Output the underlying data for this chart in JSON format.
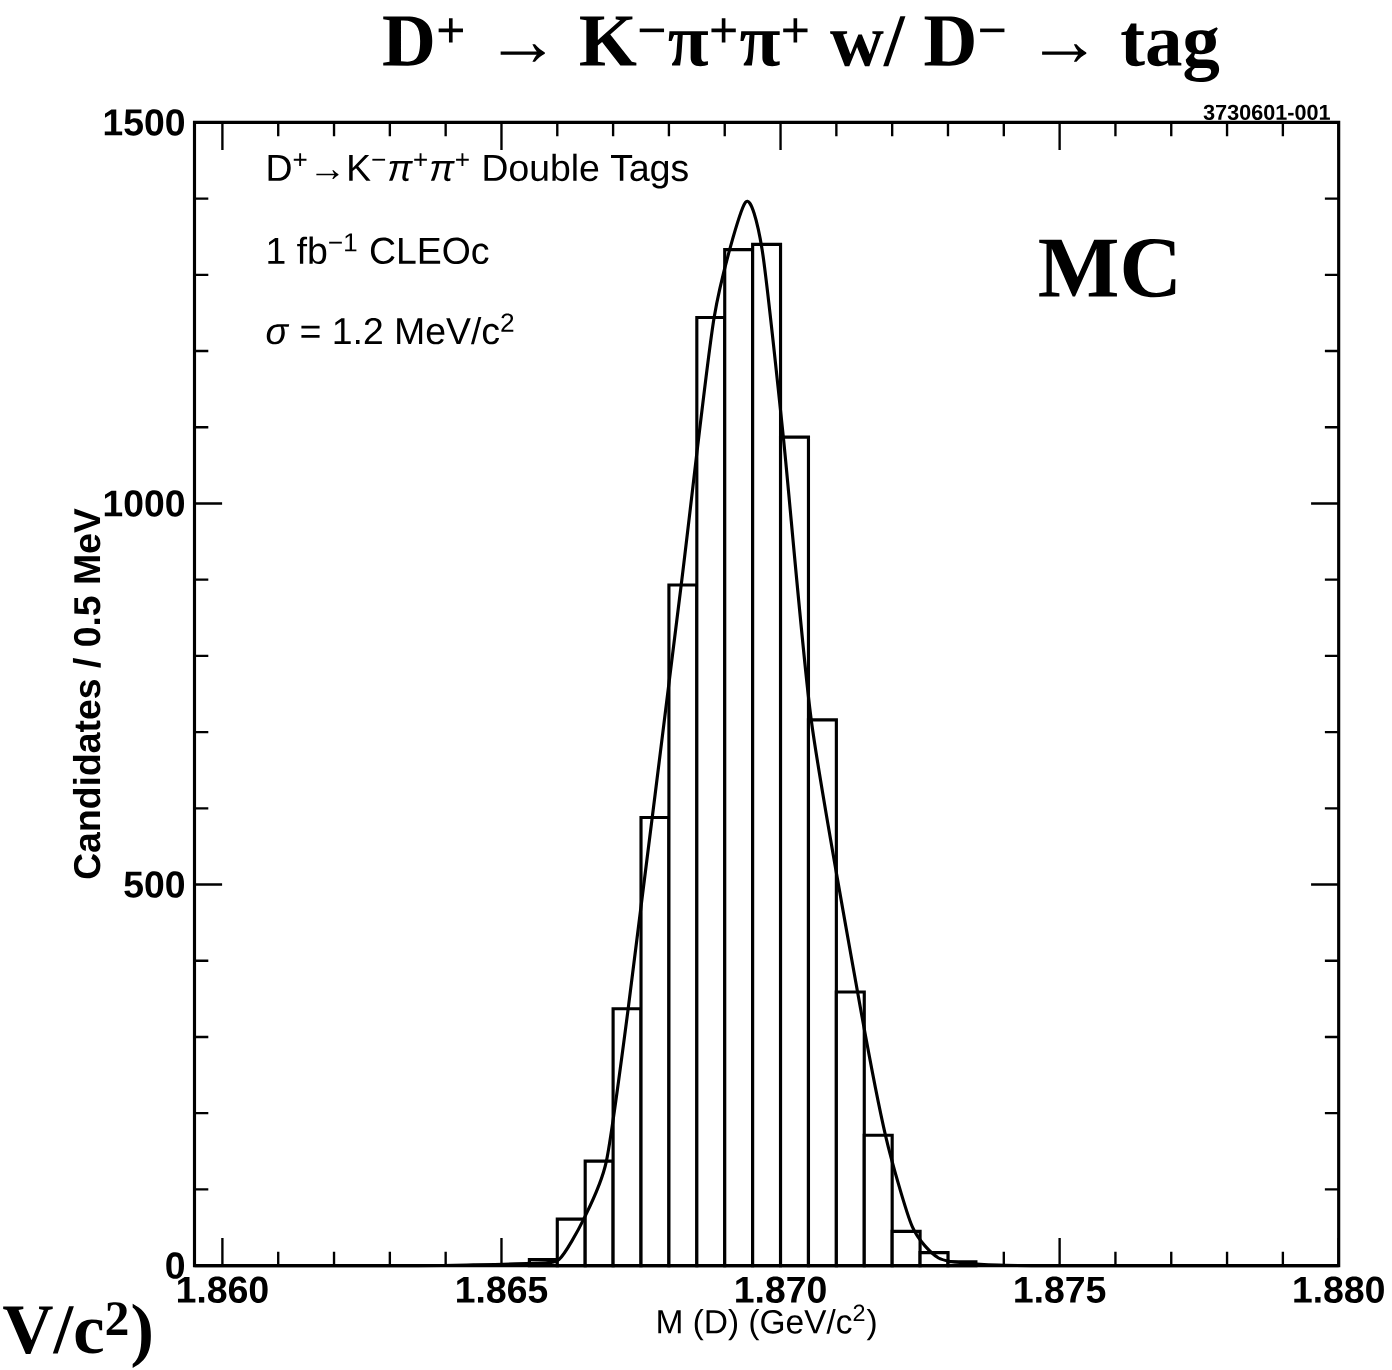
{
  "chart_data": {
    "type": "histogram",
    "title": "D$^{+}$ → K$^{−}$π$^{+}$π$^{+}$     w/ D$^{−}$ → tag",
    "xlabel": "M (D) (GeV/c$^{2}$)",
    "ylabel": "Candidates / 0.5 MeV",
    "annotations": [
      "D$^{+}$→K$^{−}$*π*$^{+}$*π*$^{+}$ Double Tags",
      "1 fb$^{−1}$ CLEOc",
      "*σ* = 1.2 MeV/c$^{2}$",
      "MC",
      "3730601-001",
      "V/c$^{2}$)"
    ],
    "xlim": [
      1.8595,
      1.88
    ],
    "ylim": [
      0,
      1500
    ],
    "xticks": [
      {
        "value": 1.86,
        "label": "1.860"
      },
      1.865,
      {
        "value": 1.87,
        "label": "1.870"
      },
      1.875,
      {
        "value": 1.88,
        "label": "1.880"
      }
    ],
    "yticks": [
      0,
      500,
      1000,
      1500
    ],
    "grid": false,
    "marker": "none",
    "series": [
      {
        "color": "#000000",
        "bins": [
          1.8645,
          1.865,
          1.8655,
          1.866,
          1.8665,
          1.867,
          1.8675,
          1.868,
          1.8685,
          1.869,
          1.8695,
          1.87,
          1.8705,
          1.871,
          1.8715,
          1.872,
          1.8725,
          1.873,
          1.8735,
          1.874
        ],
        "values": [
          null,
          null,
          8,
          61,
          137,
          337,
          588,
          893,
          1244,
          1333,
          1340,
          1087,
          716,
          359,
          171,
          45,
          17,
          5,
          null
        ]
      },
      {
        "type": "line",
        "color": "#000000",
        "line_style": "solid",
        "x": [
          1.8595,
          1.8635,
          1.8645,
          1.8655,
          1.86603,
          1.86648,
          1.86688,
          1.86727,
          1.86822,
          1.86881,
          1.86937,
          1.86967,
          1.87005,
          1.87055,
          1.87138,
          1.87188,
          1.87236,
          1.87283,
          1.8735,
          1.8745,
          1.88
        ],
        "values": [
          0,
          0,
          1,
          3,
          8,
          62,
          137,
          337,
          893,
          1244,
          1395,
          1333,
          1087,
          716,
          359,
          171,
          51,
          10,
          2,
          0,
          0
        ]
      }
    ]
  }
}
